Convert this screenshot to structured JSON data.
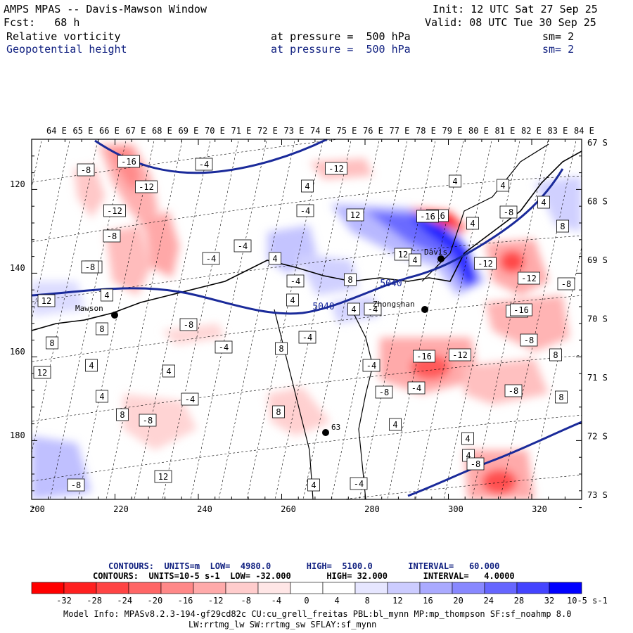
{
  "header": {
    "title": "AMPS MPAS -- Davis-Mawson Window",
    "init": "Init: 12 UTC Sat 27 Sep 25",
    "fcst": "Fcst:   68 h",
    "valid": "Valid: 08 UTC Tue 30 Sep 25",
    "field1_name": "Relative vorticity",
    "field1_level": "at pressure =  500 hPa",
    "field1_sm": "sm= 2",
    "field2_name": "Geopotential height",
    "field2_level": "at pressure =  500 hPa",
    "field2_sm": "sm= 2"
  },
  "map": {
    "top_lon_labels": [
      "64 E",
      "65 E",
      "66 E",
      "67 E",
      "68 E",
      "69 E",
      "70 E",
      "71 E",
      "72 E",
      "73 E",
      "74 E",
      "75 E",
      "76 E",
      "77 E",
      "78 E",
      "79 E",
      "80 E",
      "81 E",
      "82 E",
      "83 E",
      "84 E"
    ],
    "right_lat_labels": [
      "67 S",
      "68 S",
      "69 S",
      "70 S",
      "71 S",
      "72 S",
      "73 S"
    ],
    "left_y_labels": [
      "120",
      "140",
      "160",
      "180"
    ],
    "bottom_x_labels": [
      "200",
      "220",
      "240",
      "260",
      "280",
      "300",
      "320"
    ],
    "stations": [
      "Mawson",
      "Zhongshan",
      "Davis",
      "63"
    ],
    "contour_labels": [
      "-8",
      "-16",
      "-4",
      "-12",
      "-8",
      "-4",
      "-12",
      "-12",
      "4",
      "4",
      "4",
      "-8",
      "4",
      "-4",
      "12",
      "-16",
      "4",
      "8",
      "-4",
      "12",
      "4",
      "-4",
      "-8",
      "-8",
      "4",
      "4",
      "8",
      "8",
      "-12",
      "-8",
      "-4",
      "12",
      "4",
      "-12",
      "-16",
      "-8",
      "-4",
      "8",
      "12",
      "-16",
      "-16",
      "-12",
      "-4",
      "8",
      "-4",
      "4",
      "-8",
      "8",
      "4",
      "-8",
      "4",
      "-8",
      "-4",
      "-4",
      "4",
      "-12",
      "8",
      "8",
      "4",
      "4",
      "-8",
      "-8",
      "12",
      "-4",
      "4",
      "8",
      "-4",
      "4"
    ],
    "height_labels": [
      "5040",
      "5040"
    ]
  },
  "contours_info": {
    "height_line": "CONTOURS:  UNITS=m  LOW=  4980.0       HIGH=  5100.0       INTERVAL=   60.000",
    "vort_line": "CONTOURS:  UNITS=10-5 s-1  LOW= -32.000       HIGH= 32.000       INTERVAL=   4.0000"
  },
  "colorbar": {
    "ticks": [
      "-32",
      "-28",
      "-24",
      "-20",
      "-16",
      "-12",
      "-8",
      "-4",
      "0",
      "4",
      "8",
      "12",
      "16",
      "20",
      "24",
      "28",
      "32"
    ],
    "unit": "10-5 s-1",
    "colors": [
      "#ff0000",
      "#ff2020",
      "#ff4444",
      "#ff6666",
      "#ff8888",
      "#ffaaaa",
      "#ffcccc",
      "#ffe6e6",
      "#ffffff",
      "#ffffff",
      "#e6e6ff",
      "#ccccff",
      "#aaaaff",
      "#8888ff",
      "#6666ff",
      "#4444ff",
      "#0000ff"
    ]
  },
  "model_info": {
    "line1": "Model Info: MPASv8.2.3-194-gf29cd82c CU:cu_grell_freitas PBL:bl_mynn MP:mp_thompson SF:sf_noahmp 8.0",
    "line2": "LW:rrtmg_lw SW:rrtmg_sw SFLAY:sf_mynn"
  }
}
